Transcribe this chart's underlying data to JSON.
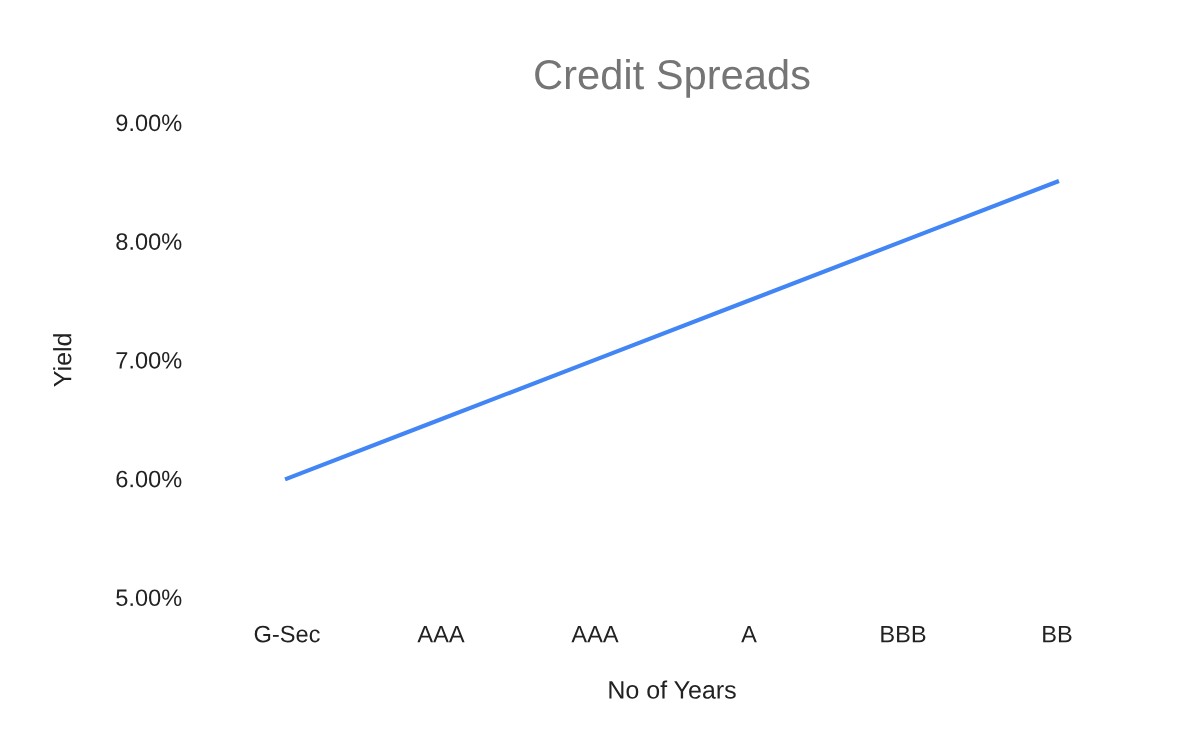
{
  "chart_data": {
    "type": "line",
    "title": "Credit Spreads",
    "xlabel": "No of Years",
    "ylabel": "Yield",
    "categories": [
      "G-Sec",
      "AAA",
      "AAA",
      "A",
      "BBB",
      "BB"
    ],
    "series": [
      {
        "color": "#4285f4",
        "values": [
          6.0,
          6.5,
          7.0,
          7.5,
          8.0,
          8.5
        ]
      }
    ],
    "ylim": [
      5,
      9
    ],
    "yticks": [
      {
        "value": 5,
        "label": "5.00%"
      },
      {
        "value": 6,
        "label": "6.00%"
      },
      {
        "value": 7,
        "label": "7.00%"
      },
      {
        "value": 8,
        "label": "8.00%"
      },
      {
        "value": 9,
        "label": "9.00%"
      }
    ],
    "grid": false,
    "legend": false,
    "marker": "none",
    "line_style": "solid"
  }
}
